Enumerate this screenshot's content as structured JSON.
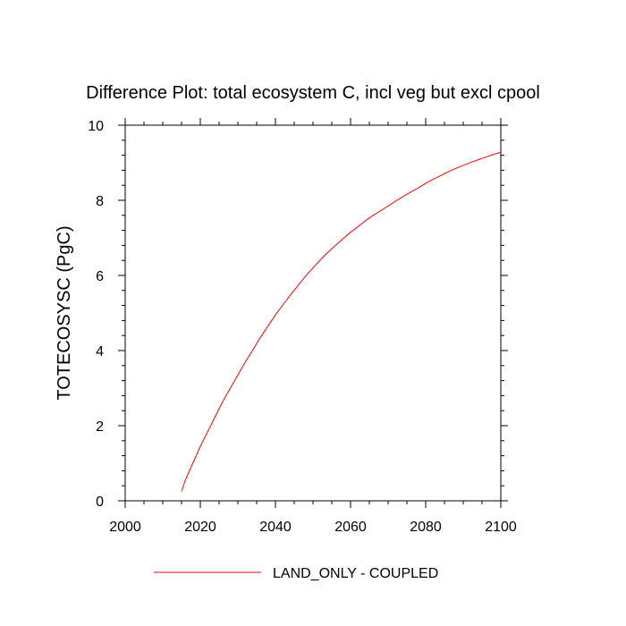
{
  "chart_data": {
    "type": "line",
    "title": "Difference Plot: total ecosystem C, incl veg but excl cpool",
    "xlabel": "",
    "ylabel": "TOTECOSYSC  (PgC)",
    "xlim": [
      2000,
      2100
    ],
    "ylim": [
      0,
      10
    ],
    "x_ticks": [
      2000,
      2020,
      2040,
      2060,
      2080,
      2100
    ],
    "y_ticks": [
      0,
      2,
      4,
      6,
      8,
      10
    ],
    "x_tick_labels": [
      "2000",
      "2020",
      "2040",
      "2060",
      "2080",
      "2100"
    ],
    "y_tick_labels": [
      "0",
      "2",
      "4",
      "6",
      "8",
      "10"
    ],
    "grid": false,
    "legend_position": "bottom-center",
    "series": [
      {
        "name": "LAND_ONLY - COUPLED",
        "color": "#ff0000",
        "x": [
          2015,
          2016,
          2018,
          2020,
          2022,
          2024,
          2026,
          2028,
          2030,
          2032,
          2034,
          2036,
          2038,
          2040,
          2042,
          2044,
          2046,
          2048,
          2050,
          2052,
          2054,
          2056,
          2058,
          2060,
          2062,
          2064,
          2066,
          2068,
          2070,
          2072,
          2074,
          2076,
          2078,
          2080,
          2082,
          2084,
          2086,
          2088,
          2090,
          2092,
          2094,
          2096,
          2098,
          2100
        ],
        "y": [
          0.25,
          0.55,
          1.0,
          1.45,
          1.85,
          2.25,
          2.65,
          3.0,
          3.35,
          3.7,
          4.02,
          4.35,
          4.65,
          4.95,
          5.22,
          5.48,
          5.73,
          5.98,
          6.2,
          6.42,
          6.62,
          6.8,
          6.98,
          7.15,
          7.3,
          7.46,
          7.6,
          7.72,
          7.85,
          7.98,
          8.1,
          8.22,
          8.33,
          8.45,
          8.56,
          8.66,
          8.76,
          8.85,
          8.93,
          9.01,
          9.08,
          9.15,
          9.22,
          9.28
        ]
      }
    ]
  }
}
